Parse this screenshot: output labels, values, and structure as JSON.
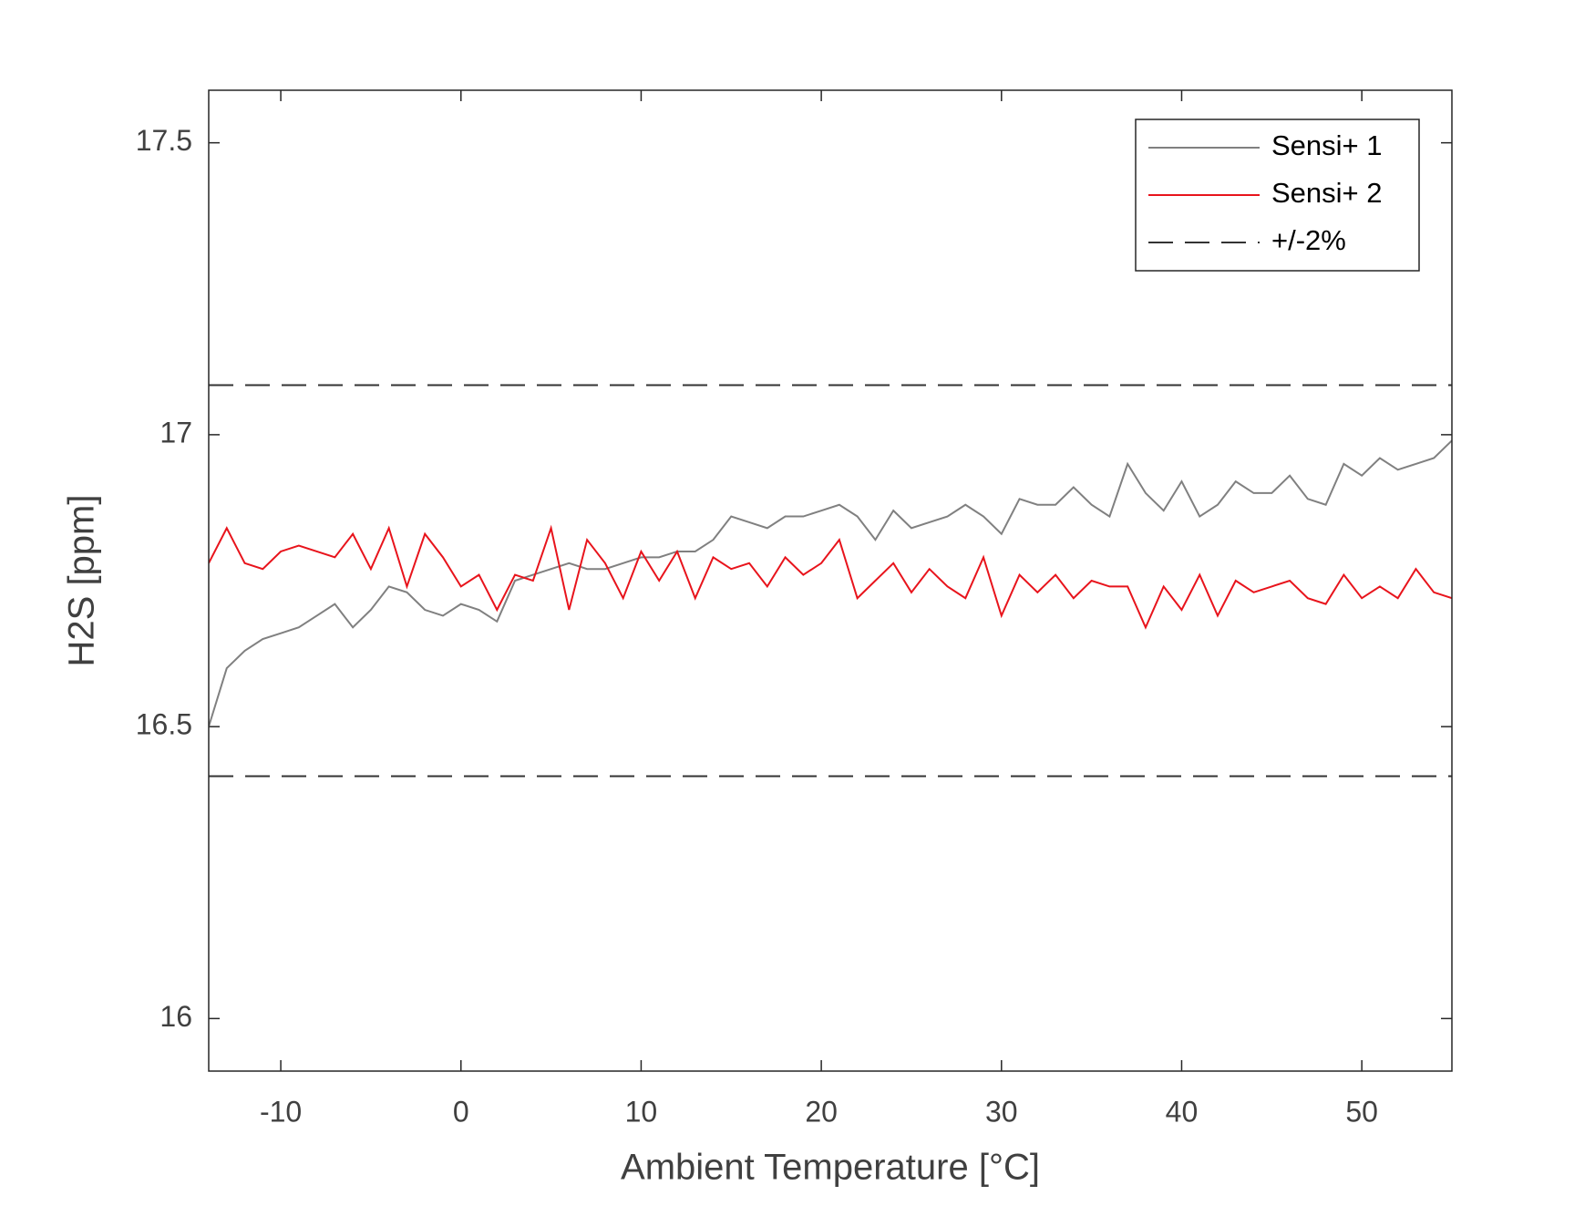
{
  "chart_data": {
    "type": "line",
    "x_label": "Ambient Temperature [°C]",
    "y_label": "H2S [ppm]",
    "x": [
      -14,
      -13,
      -12,
      -11,
      -10,
      -9,
      -8,
      -7,
      -6,
      -5,
      -4,
      -3,
      -2,
      -1,
      0,
      1,
      2,
      3,
      4,
      5,
      6,
      7,
      8,
      9,
      10,
      11,
      12,
      13,
      14,
      15,
      16,
      17,
      18,
      19,
      20,
      21,
      22,
      23,
      24,
      25,
      26,
      27,
      28,
      29,
      30,
      31,
      32,
      33,
      34,
      35,
      36,
      37,
      38,
      39,
      40,
      41,
      42,
      43,
      44,
      45,
      46,
      47,
      48,
      49,
      50,
      51,
      52,
      53,
      54,
      55
    ],
    "series": [
      {
        "name": "Sensi+ 1",
        "color": "#808080",
        "values": [
          16.5,
          16.6,
          16.63,
          16.65,
          16.66,
          16.67,
          16.69,
          16.71,
          16.67,
          16.7,
          16.74,
          16.73,
          16.7,
          16.69,
          16.71,
          16.7,
          16.68,
          16.75,
          16.76,
          16.77,
          16.78,
          16.77,
          16.77,
          16.78,
          16.79,
          16.79,
          16.8,
          16.8,
          16.82,
          16.86,
          16.85,
          16.84,
          16.86,
          16.86,
          16.87,
          16.88,
          16.86,
          16.82,
          16.87,
          16.84,
          16.85,
          16.86,
          16.88,
          16.86,
          16.83,
          16.89,
          16.88,
          16.88,
          16.91,
          16.88,
          16.86,
          16.95,
          16.9,
          16.87,
          16.92,
          16.86,
          16.88,
          16.92,
          16.9,
          16.9,
          16.93,
          16.89,
          16.88,
          16.95,
          16.93,
          16.96,
          16.94,
          16.95,
          16.96,
          16.99
        ]
      },
      {
        "name": "Sensi+ 2",
        "color": "#e8141c",
        "values": [
          16.78,
          16.84,
          16.78,
          16.77,
          16.8,
          16.81,
          16.8,
          16.79,
          16.83,
          16.77,
          16.84,
          16.74,
          16.83,
          16.79,
          16.74,
          16.76,
          16.7,
          16.76,
          16.75,
          16.84,
          16.7,
          16.82,
          16.78,
          16.72,
          16.8,
          16.75,
          16.8,
          16.72,
          16.79,
          16.77,
          16.78,
          16.74,
          16.79,
          16.76,
          16.78,
          16.82,
          16.72,
          16.75,
          16.78,
          16.73,
          16.77,
          16.74,
          16.72,
          16.79,
          16.69,
          16.76,
          16.73,
          16.76,
          16.72,
          16.75,
          16.74,
          16.74,
          16.67,
          16.74,
          16.7,
          16.76,
          16.69,
          16.75,
          16.73,
          16.74,
          16.75,
          16.72,
          16.71,
          16.76,
          16.72,
          16.74,
          16.72,
          16.77,
          16.73,
          16.72
        ]
      }
    ],
    "bands": {
      "name": "+/-2%",
      "color": "#333333",
      "lines": [
        17.085,
        16.415
      ]
    },
    "xlim": [
      -14,
      55
    ],
    "ylim": [
      15.91,
      17.59
    ],
    "xticks": [
      -10,
      0,
      10,
      20,
      30,
      40,
      50
    ],
    "yticks": [
      16,
      16.5,
      17,
      17.5
    ],
    "legend": "upper-right"
  }
}
